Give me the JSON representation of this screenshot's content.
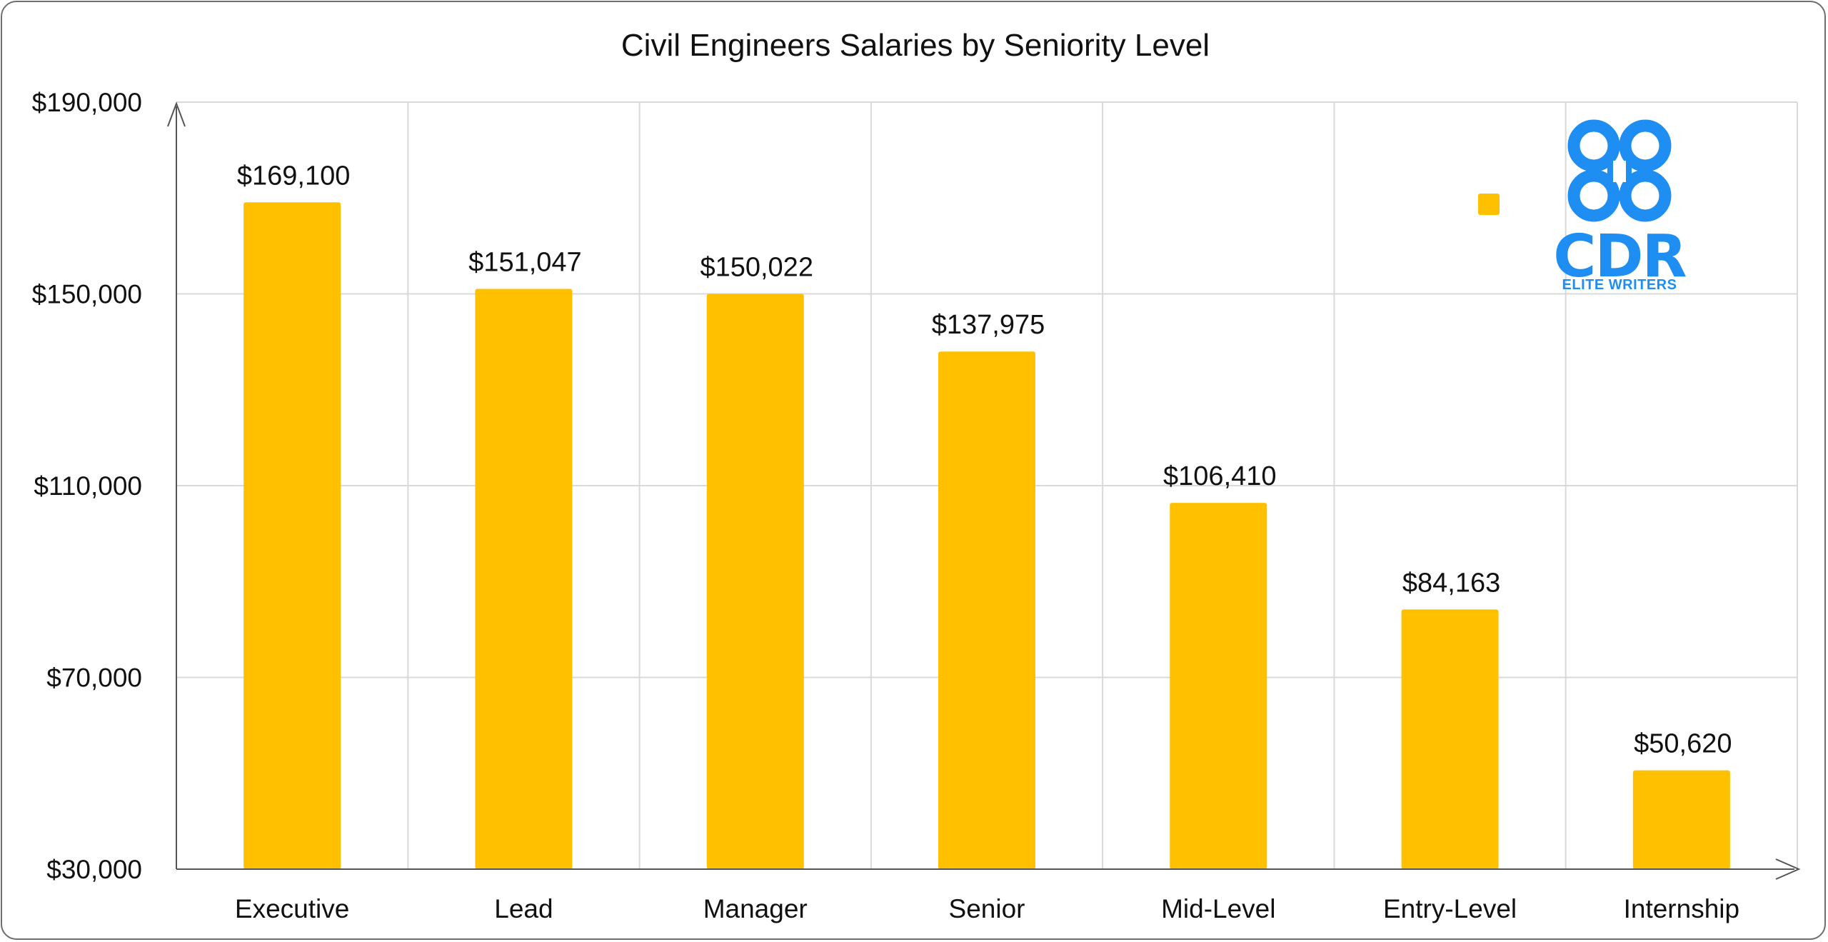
{
  "chart_data": {
    "type": "bar",
    "title": "Civil Engineers Salaries by Seniority Level",
    "xlabel": "",
    "ylabel": "",
    "categories": [
      "Executive",
      "Lead",
      "Manager",
      "Senior",
      "Mid-Level",
      "Entry-Level",
      "Internship"
    ],
    "values": [
      169100,
      151047,
      150022,
      137975,
      106410,
      84163,
      50620
    ],
    "data_labels": [
      "$169,100",
      "$151,047",
      "$150,022",
      "$137,975",
      "$106,410",
      "$84,163",
      "$50,620"
    ],
    "ylim": [
      30000,
      190000
    ],
    "yticks": [
      30000,
      70000,
      110000,
      150000,
      190000
    ],
    "ytick_labels": [
      "$30,000",
      "$70,000",
      "$110,000",
      "$150,000",
      "$190,000"
    ],
    "grid": true,
    "legend": {
      "placement": "top-right",
      "swatch_color": "#FFC000"
    },
    "bar_color": "#FFC000"
  },
  "logo": {
    "text": "CDR",
    "subtext": "ELITE WRITERS",
    "color": "#1E8EF2"
  }
}
